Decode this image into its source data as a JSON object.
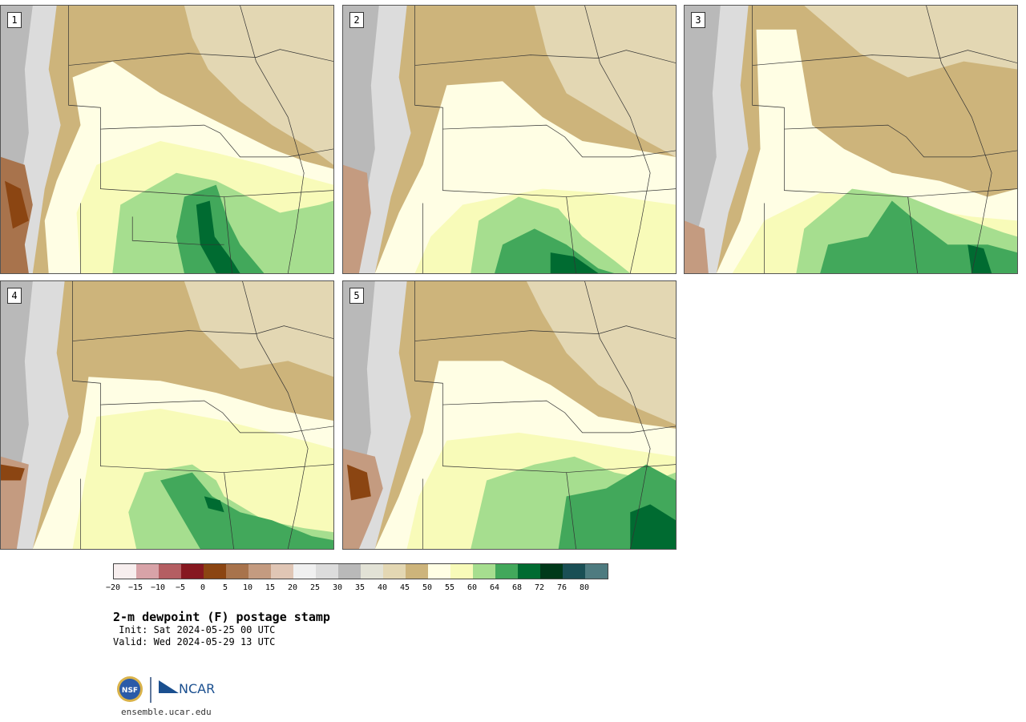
{
  "panels": [
    {
      "label": "1"
    },
    {
      "label": "2"
    },
    {
      "label": "3"
    },
    {
      "label": "4"
    },
    {
      "label": "5"
    }
  ],
  "colorbar": {
    "colors": [
      "#f7eeee",
      "#d8a3a8",
      "#b45e62",
      "#861820",
      "#8b4512",
      "#a8734c",
      "#c49b80",
      "#e0c6b5",
      "#f0f0f0",
      "#dcdcdc",
      "#b9b9b9",
      "#e2e2d6",
      "#e3d7b3",
      "#cdb47b",
      "#fffee4",
      "#f8fbb9",
      "#a6de8f",
      "#42a85b",
      "#006b31",
      "#00391a",
      "#1a4f55",
      "#4e7b80"
    ],
    "ticks": [
      "−20",
      "−15",
      "−10",
      "−5",
      "0",
      "5",
      "10",
      "15",
      "20",
      "25",
      "30",
      "35",
      "40",
      "45",
      "50",
      "55",
      "60",
      "64",
      "68",
      "72",
      "76",
      "80"
    ]
  },
  "title": "2-m dewpoint (F) postage stamp",
  "init": " Init: Sat 2024-05-25 00 UTC",
  "valid": "Valid: Wed 2024-05-29 13 UTC",
  "logo": {
    "org1": "NSF",
    "org2": "NCAR"
  },
  "website": "ensemble.ucar.edu"
}
